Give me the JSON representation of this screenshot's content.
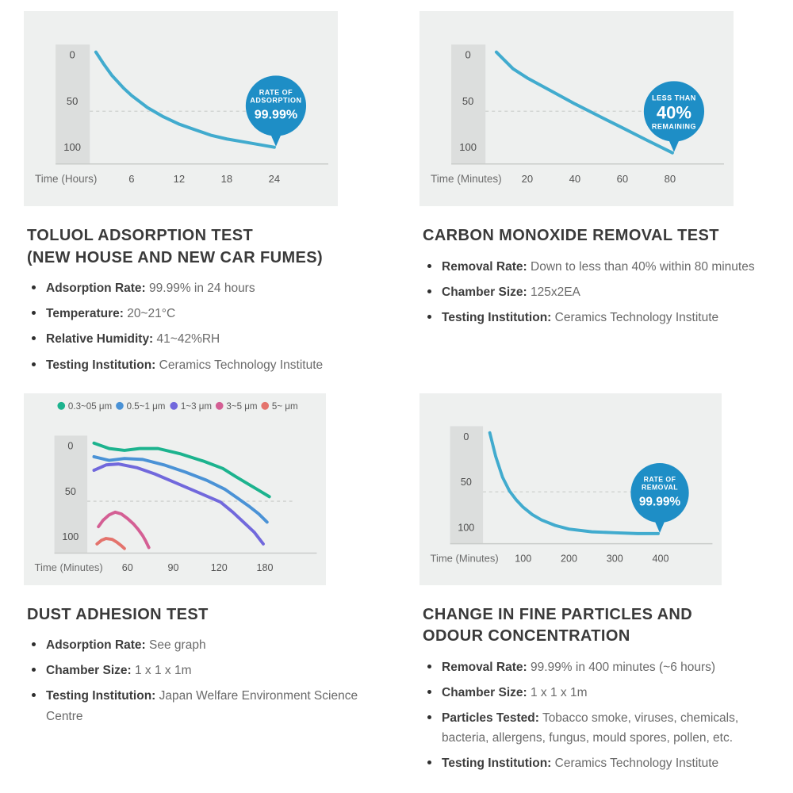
{
  "colors": {
    "curve_blue": "#41abce",
    "bubble_blue": "#1e8ec6",
    "panel_bg": "#eef0ef",
    "axis_band": "#dcdedd",
    "heading_text": "#3a3a3a",
    "body_text": "#6a6a6a"
  },
  "sections": [
    {
      "title_lines": [
        "TOLUOL ADSORPTION TEST",
        "(NEW HOUSE AND NEW CAR FUMES)"
      ],
      "bullets": [
        {
          "label": "Adsorption Rate:",
          "value": "99.99% in 24 hours"
        },
        {
          "label": "Temperature:",
          "value": "20~21°C"
        },
        {
          "label": "Relative Humidity:",
          "value": "41~42%RH"
        },
        {
          "label": "Testing Institution:",
          "value": "Ceramics Technology Institute"
        }
      ]
    },
    {
      "title_lines": [
        "CARBON MONOXIDE REMOVAL TEST"
      ],
      "bullets": [
        {
          "label": "Removal Rate:",
          "value": "Down to less than 40% within 80 minutes"
        },
        {
          "label": "Chamber Size:",
          "value": "125x2EA"
        },
        {
          "label": "Testing Institution:",
          "value": "Ceramics Technology Institute"
        }
      ]
    },
    {
      "title_lines": [
        "DUST ADHESION TEST"
      ],
      "bullets": [
        {
          "label": "Adsorption Rate:",
          "value": "See graph"
        },
        {
          "label": "Chamber Size:",
          "value": "1 x 1 x 1m"
        },
        {
          "label": "Testing Institution:",
          "value": "Japan Welfare Environment Science Centre"
        }
      ]
    },
    {
      "title_lines": [
        "CHANGE IN FINE PARTICLES AND",
        "ODOUR CONCENTRATION"
      ],
      "bullets": [
        {
          "label": "Removal Rate:",
          "value": "99.99% in 400 minutes (~6 hours)"
        },
        {
          "label": "Chamber Size:",
          "value": "1 x 1 x 1m"
        },
        {
          "label": "Particles Tested:",
          "value": "Tobacco smoke, viruses, chemicals, bacteria, allergens, fungus, mould spores, pollen, etc."
        },
        {
          "label": "Testing Institution:",
          "value": "Ceramics Technology Institute"
        }
      ]
    }
  ],
  "chart_data": [
    {
      "type": "line",
      "xlabel": "Time (Hours)",
      "x_ticks": [
        6,
        12,
        18,
        24
      ],
      "y_ticks": [
        0,
        50,
        100
      ],
      "y_axis_direction": "down",
      "ylim": [
        0,
        100
      ],
      "grid": "single dashed line",
      "dashed_gridline_at": 61,
      "series": [
        {
          "color": "#41abce",
          "points": [
            [
              1.5,
              -3
            ],
            [
              2.5,
              10
            ],
            [
              3.5,
              22
            ],
            [
              5,
              36
            ],
            [
              6,
              44
            ],
            [
              8,
              57
            ],
            [
              10,
              67
            ],
            [
              12,
              75
            ],
            [
              14,
              81
            ],
            [
              16,
              87
            ],
            [
              18,
              91
            ],
            [
              20,
              94
            ],
            [
              22,
              97
            ],
            [
              24,
              100
            ]
          ]
        }
      ],
      "bubble": {
        "top": [
          "RATE OF",
          "ADSORPTION"
        ],
        "big": "99.99%",
        "bottom": []
      }
    },
    {
      "type": "line",
      "xlabel": "Time (Minutes)",
      "x_ticks": [
        20,
        40,
        60,
        80
      ],
      "y_ticks": [
        0,
        50,
        100
      ],
      "y_axis_direction": "down",
      "ylim": [
        0,
        100
      ],
      "grid": "single dashed line",
      "dashed_gridline_at": 61,
      "series": [
        {
          "color": "#41abce",
          "points": [
            [
              7,
              -3
            ],
            [
              14,
              15
            ],
            [
              20,
              25
            ],
            [
              30,
              39
            ],
            [
              40,
              53
            ],
            [
              50,
              66
            ],
            [
              60,
              79
            ],
            [
              70,
              92
            ],
            [
              81,
              106
            ]
          ]
        }
      ],
      "bubble": {
        "top": [
          "LESS THAN"
        ],
        "big": "40%",
        "bottom": [
          "REMAINING"
        ]
      }
    },
    {
      "type": "line",
      "xlabel": "Time (Minutes)",
      "x_ticks": [
        60,
        90,
        120,
        180
      ],
      "y_ticks": [
        0,
        50,
        100
      ],
      "y_axis_direction": "down",
      "ylim": [
        0,
        100
      ],
      "grid": "single dashed line",
      "dashed_gridline_at": 61,
      "legend_position": "top",
      "series": [
        {
          "label": "0.3~05 μm",
          "color": "#1cb38e",
          "points": [
            [
              38,
              -3
            ],
            [
              48,
              3
            ],
            [
              58,
              5
            ],
            [
              68,
              3
            ],
            [
              80,
              3
            ],
            [
              95,
              9
            ],
            [
              110,
              17
            ],
            [
              125,
              25
            ],
            [
              142,
              34
            ],
            [
              160,
              43
            ],
            [
              172,
              49
            ],
            [
              186,
              56
            ]
          ]
        },
        {
          "label": "0.5~1 μm",
          "color": "#4a92d6",
          "points": [
            [
              38,
              12
            ],
            [
              48,
              16
            ],
            [
              58,
              14
            ],
            [
              70,
              15
            ],
            [
              84,
              21
            ],
            [
              98,
              29
            ],
            [
              112,
              38
            ],
            [
              128,
              48
            ],
            [
              145,
              58
            ],
            [
              160,
              67
            ],
            [
              172,
              75
            ],
            [
              183,
              84
            ]
          ]
        },
        {
          "label": "1~3 μm",
          "color": "#7168dc",
          "points": [
            [
              38,
              27
            ],
            [
              46,
              21
            ],
            [
              54,
              20
            ],
            [
              66,
              24
            ],
            [
              78,
              31
            ],
            [
              92,
              41
            ],
            [
              106,
              51
            ],
            [
              122,
              62
            ],
            [
              138,
              73
            ],
            [
              152,
              84
            ],
            [
              166,
              95
            ],
            [
              178,
              108
            ]
          ]
        },
        {
          "label": "3~5 μm",
          "color": "#d45f94",
          "points": [
            [
              41,
              89
            ],
            [
              44,
              82
            ],
            [
              48,
              76
            ],
            [
              52,
              73
            ],
            [
              56,
              75
            ],
            [
              60,
              80
            ],
            [
              64,
              86
            ],
            [
              67,
              92
            ],
            [
              70,
              99
            ],
            [
              72,
              105
            ],
            [
              74,
              112
            ]
          ]
        },
        {
          "label": "5~ μm",
          "color": "#e4736c",
          "points": [
            [
              40,
              108
            ],
            [
              43,
              104
            ],
            [
              46,
              102
            ],
            [
              50,
              103
            ],
            [
              53,
              106
            ],
            [
              56,
              110
            ],
            [
              58,
              113
            ]
          ]
        }
      ]
    },
    {
      "type": "line",
      "xlabel": "Time (Minutes)",
      "x_ticks": [
        100,
        200,
        300,
        400
      ],
      "y_ticks": [
        0,
        50,
        100
      ],
      "y_axis_direction": "down",
      "ylim": [
        0,
        100
      ],
      "grid": "single dashed line",
      "dashed_gridline_at": 61,
      "series": [
        {
          "color": "#41abce",
          "points": [
            [
              27,
              -4
            ],
            [
              40,
              22
            ],
            [
              55,
              45
            ],
            [
              70,
              60
            ],
            [
              85,
              70
            ],
            [
              100,
              78
            ],
            [
              120,
              86
            ],
            [
              140,
              92
            ],
            [
              170,
              98
            ],
            [
              200,
              102
            ],
            [
              250,
              105
            ],
            [
              300,
              106
            ],
            [
              350,
              107
            ],
            [
              395,
              107
            ]
          ]
        }
      ],
      "bubble": {
        "top": [
          "RATE OF",
          "REMOVAL"
        ],
        "big": "99.99%",
        "bottom": []
      }
    }
  ]
}
